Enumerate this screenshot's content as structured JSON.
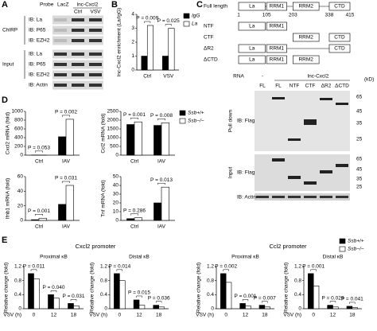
{
  "panel_letters": [
    "A",
    "B",
    "C",
    "D",
    "E"
  ],
  "blot_a": {
    "probe": "Probe",
    "lanes_top": [
      "LacZ",
      "lnc-Cxcl2"
    ],
    "lanes": [
      "Ctrl",
      "VSV"
    ],
    "groups": [
      "ChIRP",
      "Input"
    ],
    "rows": [
      "IB: La",
      "IB: P65",
      "IB: EZH2",
      "IB: La",
      "IB: P65",
      "IB: EZH2",
      "IB: Actin"
    ]
  },
  "domain_c": {
    "title": "Full length",
    "domains": [
      "La",
      "RRM1",
      "RRM2",
      "CTD"
    ],
    "positions": [
      "1",
      "105",
      "203",
      "338",
      "415"
    ],
    "constructs": [
      "NTF",
      "CTF",
      "ΔR2",
      "ΔCTD"
    ]
  },
  "blot_c": {
    "rna": "RNA",
    "rna_groups": [
      "-",
      "lnc-Cxcl2"
    ],
    "lanes": [
      "FL",
      "FL",
      "NTF",
      "CTF",
      "ΔR2",
      "ΔCTD"
    ],
    "unit": "(kD)",
    "markers_top": [
      "65",
      "45",
      "35",
      "25"
    ],
    "markers_bottom": [
      "65",
      "45",
      "35",
      "25"
    ],
    "groups": [
      "Pull down",
      "Input"
    ],
    "rows": [
      "IB: Flag",
      "IB: Flag",
      "IB: Actin"
    ]
  },
  "figure_e": {
    "titles": [
      "Cxcl2 promoter",
      "Ccl2 promoter"
    ]
  },
  "chart_data": [
    {
      "type": "bar",
      "ylabel": "lnc-Cxcl2 enrichment (La/IgG)",
      "categories": [
        "Ctrl",
        "VSV"
      ],
      "series": [
        {
          "name": "IgG",
          "color": "#000000",
          "values": [
            1,
            1
          ]
        },
        {
          "name": "La",
          "color": "#ffffff",
          "values": [
            3.2,
            3.0
          ]
        }
      ],
      "ylim": [
        0,
        4
      ],
      "yticks": [
        0,
        1,
        2,
        3,
        4
      ],
      "annotations": [
        "P = 0.009",
        "P = 0.025"
      ],
      "legend": "right"
    },
    {
      "type": "bar",
      "ylabel": "Cxcl2 mRNA (fold)",
      "categories": [
        "Ctrl",
        "IAV"
      ],
      "series": [
        {
          "color": "#000000",
          "values": [
            3,
            420
          ]
        },
        {
          "color": "#ffffff",
          "values": [
            2,
            820
          ]
        }
      ],
      "ylim": [
        0,
        1000
      ],
      "yticks": [
        0,
        200,
        400,
        600,
        800,
        1000
      ],
      "annotations": [
        "P = 0.053",
        "P = 0.002"
      ]
    },
    {
      "type": "bar",
      "ylabel": "Ccl2 mRNA (fold)",
      "categories": [
        "Ctrl",
        "IAV"
      ],
      "series": [
        {
          "name": "Ssb+/+",
          "color": "#000000",
          "values": [
            1750,
            1700
          ]
        },
        {
          "name": "Ssb−/−",
          "color": "#ffffff",
          "values": [
            1900,
            1850
          ]
        }
      ],
      "ylim": [
        0,
        2500
      ],
      "yticks": [
        0,
        500,
        1000,
        1500,
        2000,
        2500
      ],
      "annotations": [
        "P = 0.001",
        "P = 0.008"
      ],
      "legend": "right"
    },
    {
      "type": "bar",
      "ylabel": "Ifnb1 mRNA (fold)",
      "categories": [
        "Ctrl",
        "IAV"
      ],
      "series": [
        {
          "color": "#000000",
          "values": [
            1,
            22
          ]
        },
        {
          "color": "#ffffff",
          "values": [
            3,
            48
          ]
        }
      ],
      "ylim": [
        0,
        60
      ],
      "yticks": [
        0,
        20,
        40,
        60
      ],
      "annotations": [
        "P = 0.001",
        "P = 0.031"
      ]
    },
    {
      "type": "bar",
      "ylabel": "Tnf mRNA (fold)",
      "categories": [
        "Ctrl",
        "IAV"
      ],
      "series": [
        {
          "color": "#000000",
          "values": [
            2,
            20
          ]
        },
        {
          "color": "#ffffff",
          "values": [
            3,
            38
          ]
        }
      ],
      "ylim": [
        0,
        50
      ],
      "yticks": [
        0,
        10,
        20,
        30,
        40,
        50
      ],
      "annotations": [
        "P = 0.286",
        "P = 0.013"
      ]
    },
    {
      "type": "bar",
      "title": "Proximal κB",
      "ylabel": "Relative change (fold)",
      "xlabel": "VSV (h)",
      "categories": [
        "0",
        "12",
        "18"
      ],
      "series": [
        {
          "color": "#000000",
          "values": [
            1.0,
            0.4,
            0.15
          ]
        },
        {
          "color": "#ffffff",
          "values": [
            0.85,
            0.3,
            0.08
          ]
        }
      ],
      "ylim": [
        0,
        1.2
      ],
      "yticks": [
        0,
        0.4,
        0.8,
        1.2
      ],
      "annotations": [
        "P = 0.011",
        "P = 0.040",
        "P = 0.031"
      ]
    },
    {
      "type": "bar",
      "title": "Distal κB",
      "ylabel": "Relative change (fold)",
      "xlabel": "VSV (h)",
      "categories": [
        "0",
        "12",
        "18"
      ],
      "series": [
        {
          "color": "#000000",
          "values": [
            1.0,
            0.25,
            0.1
          ]
        },
        {
          "color": "#ffffff",
          "values": [
            0.8,
            0.1,
            0.05
          ]
        }
      ],
      "ylim": [
        0,
        1.2
      ],
      "yticks": [
        0,
        0.4,
        0.8,
        1.2
      ],
      "annotations": [
        "P = 0.014",
        "P = 0.015",
        "P = 0.036"
      ]
    },
    {
      "type": "bar",
      "title": "Proximal κB",
      "ylabel": "Relative change (fold)",
      "xlabel": "VSV (h)",
      "categories": [
        "0",
        "12",
        "18"
      ],
      "series": [
        {
          "color": "#000000",
          "values": [
            1.0,
            0.15,
            0.1
          ]
        },
        {
          "color": "#ffffff",
          "values": [
            0.75,
            0.08,
            0.05
          ]
        }
      ],
      "ylim": [
        0,
        1.2
      ],
      "yticks": [
        0,
        0.4,
        0.8,
        1.2
      ],
      "annotations": [
        "P = 0.002",
        "P = 0.001",
        "P = 0.007"
      ]
    },
    {
      "type": "bar",
      "title": "Distal κB",
      "ylabel": "Relative change (fold)",
      "xlabel": "VSV (h)",
      "categories": [
        "0",
        "12",
        "18"
      ],
      "series": [
        {
          "name": "Ssb+/+",
          "color": "#000000",
          "values": [
            1.0,
            0.1,
            0.07
          ]
        },
        {
          "name": "Ssb−/−",
          "color": "#ffffff",
          "values": [
            0.65,
            0.05,
            0.03
          ]
        }
      ],
      "ylim": [
        0,
        1.2
      ],
      "yticks": [
        0,
        0.4,
        0.8,
        1.2
      ],
      "annotations": [
        "P = 0.001",
        "P = 0.029",
        "P = 0.041"
      ],
      "legend": "top"
    }
  ]
}
